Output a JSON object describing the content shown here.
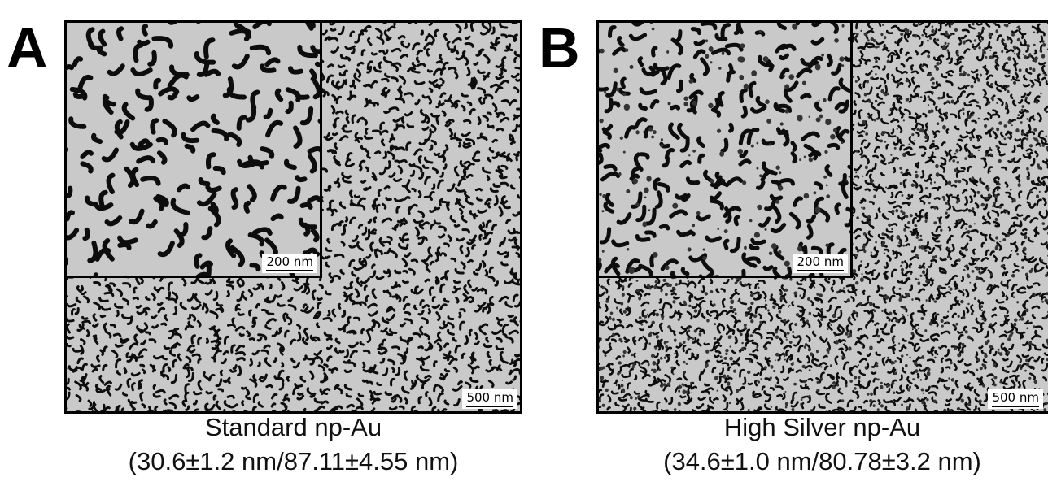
{
  "panels": [
    {
      "letter": "A",
      "main_scale_label": "500 nm",
      "inset_scale_label": "200 nm",
      "caption_title": "Standard np-Au",
      "caption_values": "(30.6±1.2 nm/87.11±4.55 nm)"
    },
    {
      "letter": "B",
      "main_scale_label": "500 nm",
      "inset_scale_label": "200 nm",
      "caption_title": "High Silver np-Au",
      "caption_values": "(34.6±1.0 nm/80.78±3.2 nm)"
    }
  ],
  "colors": {
    "ligament": "#c9c9c9",
    "pore": "#0d0d0d",
    "background": "#ffffff"
  }
}
